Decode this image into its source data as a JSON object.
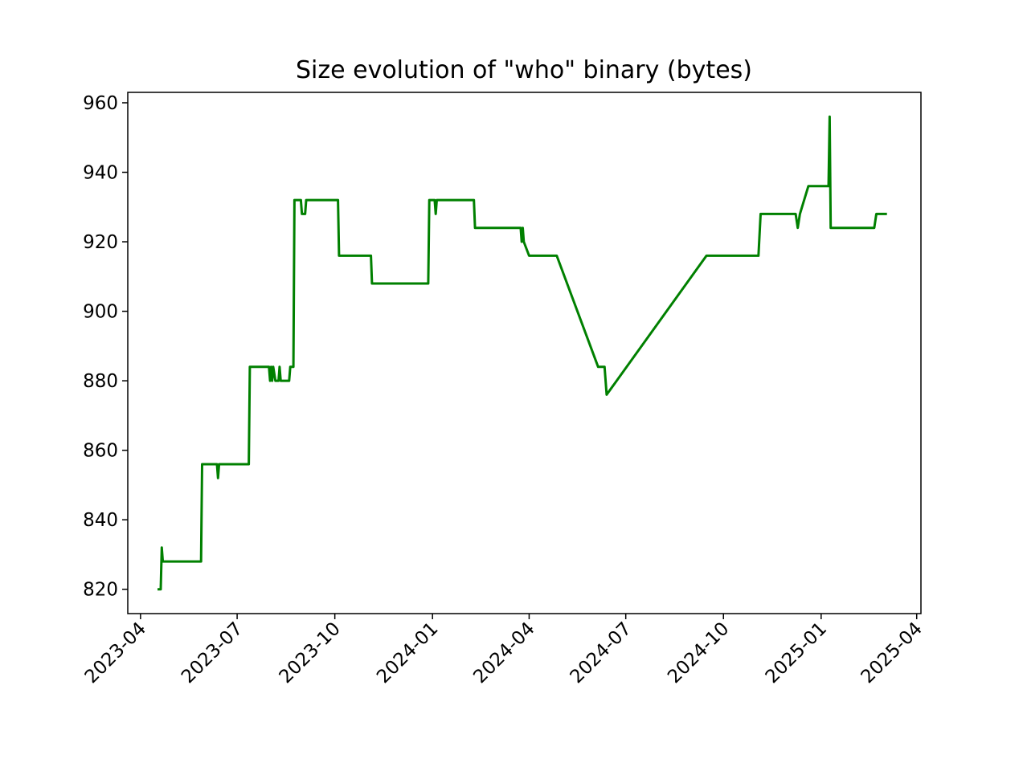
{
  "chart_data": {
    "type": "line",
    "title": "Size evolution of \"who\" binary (bytes)",
    "xlabel": "",
    "ylabel": "",
    "grid": false,
    "legend": "none",
    "x_range": [
      "2023-03-20",
      "2025-04-05"
    ],
    "y_range": [
      813,
      963
    ],
    "x_ticks": [
      {
        "date": "2023-04-01",
        "label": "2023-04"
      },
      {
        "date": "2023-07-01",
        "label": "2023-07"
      },
      {
        "date": "2023-10-01",
        "label": "2023-10"
      },
      {
        "date": "2024-01-01",
        "label": "2024-01"
      },
      {
        "date": "2024-04-01",
        "label": "2024-04"
      },
      {
        "date": "2024-07-01",
        "label": "2024-07"
      },
      {
        "date": "2024-10-01",
        "label": "2024-10"
      },
      {
        "date": "2025-01-01",
        "label": "2025-01"
      },
      {
        "date": "2025-04-01",
        "label": "2025-04"
      }
    ],
    "y_ticks": [
      820,
      840,
      860,
      880,
      900,
      920,
      940,
      960
    ],
    "series": [
      {
        "color": "#008000",
        "points": [
          [
            "2023-04-17",
            820
          ],
          [
            "2023-04-20",
            820
          ],
          [
            "2023-04-21",
            832
          ],
          [
            "2023-04-22",
            828
          ],
          [
            "2023-05-28",
            828
          ],
          [
            "2023-05-29",
            856
          ],
          [
            "2023-06-12",
            856
          ],
          [
            "2023-06-13",
            852
          ],
          [
            "2023-06-14",
            856
          ],
          [
            "2023-07-12",
            856
          ],
          [
            "2023-07-13",
            884
          ],
          [
            "2023-07-31",
            884
          ],
          [
            "2023-08-01",
            880
          ],
          [
            "2023-08-02",
            884
          ],
          [
            "2023-08-03",
            880
          ],
          [
            "2023-08-04",
            884
          ],
          [
            "2023-08-06",
            880
          ],
          [
            "2023-08-09",
            880
          ],
          [
            "2023-08-10",
            884
          ],
          [
            "2023-08-11",
            880
          ],
          [
            "2023-08-19",
            880
          ],
          [
            "2023-08-20",
            884
          ],
          [
            "2023-08-23",
            884
          ],
          [
            "2023-08-24",
            932
          ],
          [
            "2023-08-30",
            932
          ],
          [
            "2023-08-31",
            928
          ],
          [
            "2023-09-03",
            928
          ],
          [
            "2023-09-04",
            932
          ],
          [
            "2023-10-04",
            932
          ],
          [
            "2023-10-05",
            916
          ],
          [
            "2023-11-04",
            916
          ],
          [
            "2023-11-05",
            908
          ],
          [
            "2023-12-28",
            908
          ],
          [
            "2023-12-29",
            932
          ],
          [
            "2024-01-03",
            932
          ],
          [
            "2024-01-04",
            928
          ],
          [
            "2024-01-05",
            932
          ],
          [
            "2024-02-09",
            932
          ],
          [
            "2024-02-10",
            924
          ],
          [
            "2024-03-24",
            924
          ],
          [
            "2024-03-25",
            920
          ],
          [
            "2024-03-26",
            924
          ],
          [
            "2024-03-27",
            920
          ],
          [
            "2024-04-01",
            916
          ],
          [
            "2024-04-27",
            916
          ],
          [
            "2024-06-05",
            884
          ],
          [
            "2024-06-11",
            884
          ],
          [
            "2024-06-13",
            876
          ],
          [
            "2024-09-15",
            916
          ],
          [
            "2024-11-03",
            916
          ],
          [
            "2024-11-05",
            928
          ],
          [
            "2024-12-08",
            928
          ],
          [
            "2024-12-10",
            924
          ],
          [
            "2024-12-12",
            928
          ],
          [
            "2024-12-20",
            936
          ],
          [
            "2025-01-08",
            936
          ],
          [
            "2025-01-09",
            956
          ],
          [
            "2025-01-10",
            924
          ],
          [
            "2025-02-20",
            924
          ],
          [
            "2025-02-22",
            928
          ],
          [
            "2025-03-04",
            928
          ]
        ]
      }
    ]
  }
}
